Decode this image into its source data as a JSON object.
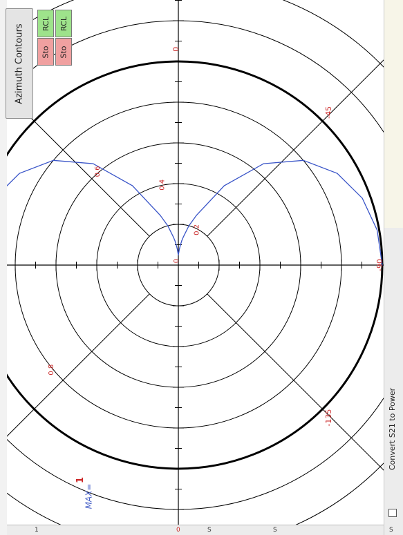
{
  "window": {
    "azimuth_button_label": "Azimuth Contours",
    "memory_buttons": [
      {
        "label": "RCL",
        "kind": "recall"
      },
      {
        "label": "Sto",
        "kind": "store"
      },
      {
        "label": "RCL",
        "kind": "recall"
      },
      {
        "label": "Sto",
        "kind": "store"
      }
    ],
    "max_label": "MAX=",
    "max_value": "1",
    "convert_checkbox_label": "Convert S21 to Power",
    "convert_checked": false,
    "bottom_tabs": [
      "1",
      "0",
      "S",
      "S"
    ],
    "right_corner_label": "S"
  },
  "chart_data": {
    "type": "polar",
    "angle_labels": [
      "0",
      "-45",
      "45",
      "-90",
      "-135"
    ],
    "radius_labels": [
      "0",
      "0.2",
      "0.4",
      "0.6",
      "0.8"
    ],
    "radius_ticks": [
      0.2,
      0.4,
      0.6,
      0.8,
      1.0
    ],
    "rlim": [
      0,
      1
    ],
    "max_ring": 1.0,
    "pattern": {
      "name": "",
      "angle_deg": [
        -90,
        -80,
        -70,
        -60,
        -50,
        -40,
        -30,
        -20,
        -15,
        -10,
        -8,
        -6,
        -4,
        -2,
        0,
        2,
        4,
        6,
        8,
        10,
        15,
        20,
        30,
        40,
        50,
        60,
        70,
        80,
        90
      ],
      "radius": [
        1.0,
        0.99,
        0.96,
        0.9,
        0.8,
        0.65,
        0.45,
        0.26,
        0.2,
        0.14,
        0.12,
        0.1,
        0.08,
        0.06,
        0.05,
        0.06,
        0.08,
        0.1,
        0.12,
        0.14,
        0.2,
        0.26,
        0.45,
        0.65,
        0.8,
        0.9,
        0.96,
        0.99,
        1.0
      ]
    },
    "colors": {
      "pattern": "#3a55c8",
      "max_ring": "#000000",
      "labels": "#cc2a2a",
      "grid": "#000000"
    }
  }
}
